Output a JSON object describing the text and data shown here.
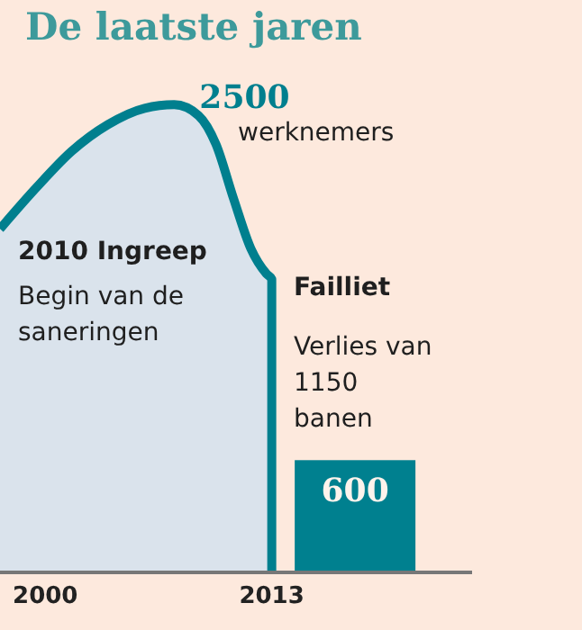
{
  "chart_data": {
    "type": "area",
    "title": "De laatste jaren",
    "annotations": [
      "werknemers",
      "2010 Ingreep",
      "Begin van de saneringen",
      "Failliet",
      "Verlies van 1150 banen"
    ],
    "series": [
      {
        "color": "#007f8e",
        "x": [
          1997.4,
          1999.5,
          2001.5,
          2003.6,
          2005.7,
          2007.4,
          2008.8,
          2009.8,
          2010.8,
          2011.8,
          2012.7,
          2013,
          2013
        ],
        "values": [
          1836,
          2058,
          2250,
          2394,
          2481,
          2500,
          2442,
          2288,
          2000,
          1731,
          1596,
          1567,
          0
        ],
        "value_labels": [
          null,
          null,
          null,
          null,
          null,
          "2500",
          null,
          null,
          null,
          null,
          null,
          null,
          null
        ]
      },
      {
        "type": "bar",
        "color": "#00808f",
        "x": [
          2017.8
        ],
        "values": [
          600
        ],
        "value_labels": [
          "600"
        ]
      }
    ],
    "xlim": [
      1997.4,
      2024.5
    ],
    "xticks": [
      2000,
      2013
    ],
    "tick_labels": "x",
    "grid": false,
    "legend": false
  }
}
